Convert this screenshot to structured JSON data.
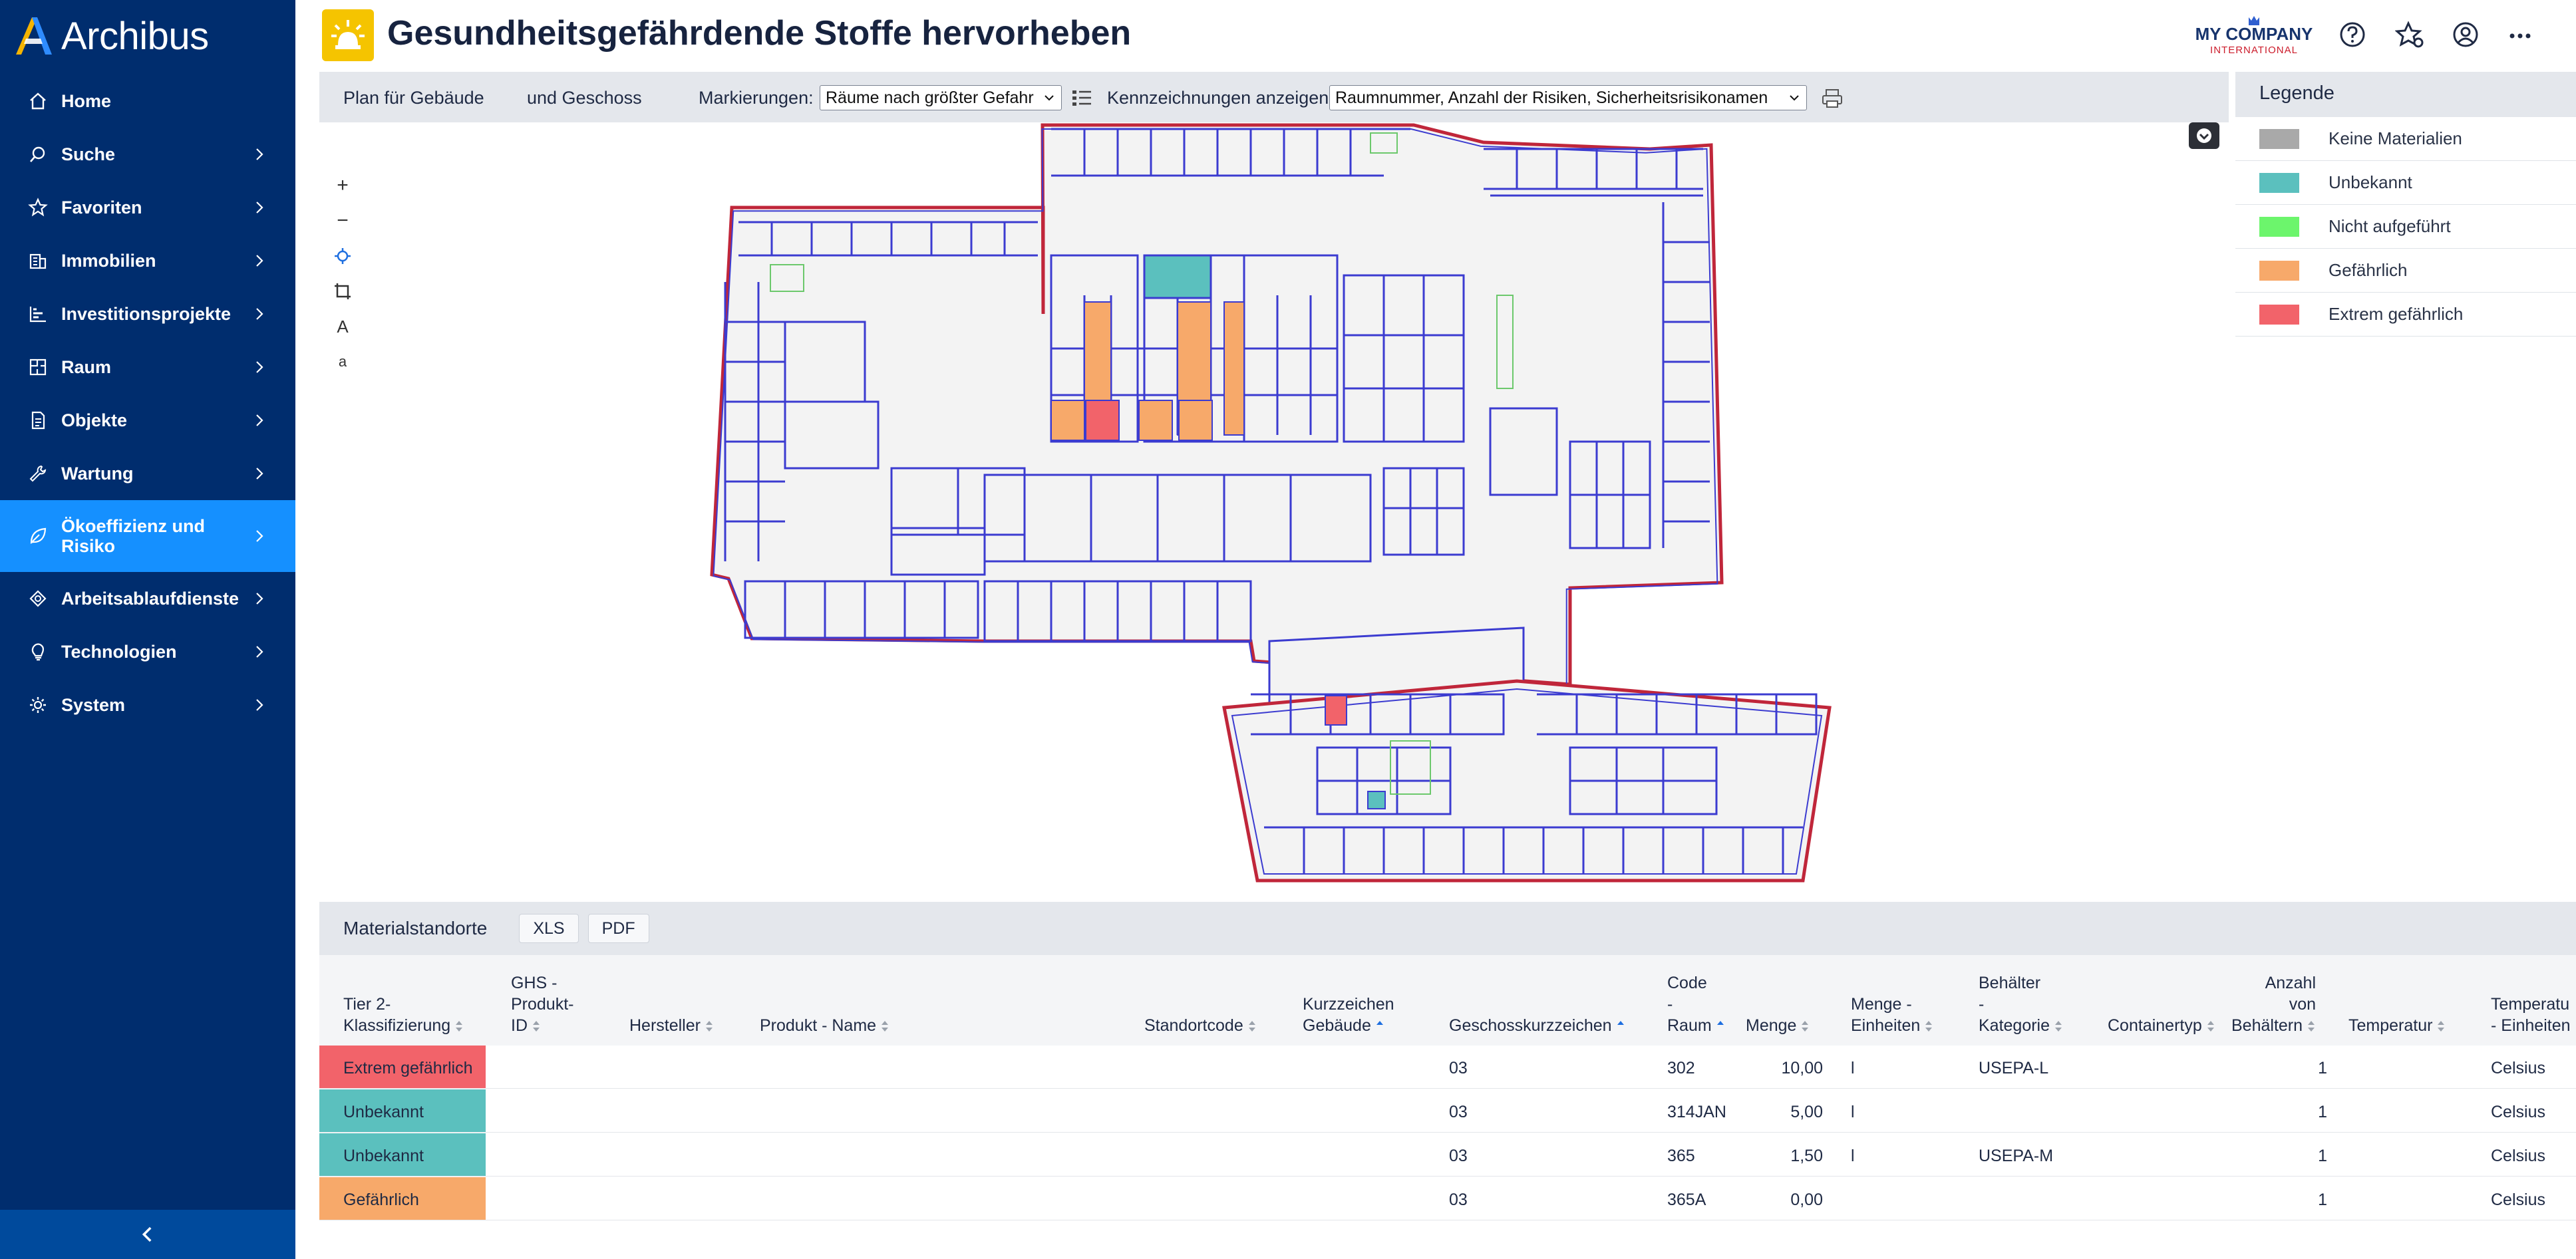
{
  "app": {
    "brand": "Archibus"
  },
  "nav": {
    "items": [
      {
        "label": "Home",
        "icon": "home-icon",
        "has_children": false
      },
      {
        "label": "Suche",
        "icon": "search-icon",
        "has_children": true
      },
      {
        "label": "Favoriten",
        "icon": "star-icon",
        "has_children": true
      },
      {
        "label": "Immobilien",
        "icon": "building-icon",
        "has_children": true
      },
      {
        "label": "Investitionsprojekte",
        "icon": "chart-icon",
        "has_children": true
      },
      {
        "label": "Raum",
        "icon": "floorplan-icon",
        "has_children": true
      },
      {
        "label": "Objekte",
        "icon": "document-icon",
        "has_children": true
      },
      {
        "label": "Wartung",
        "icon": "wrench-icon",
        "has_children": true
      },
      {
        "label": "Ökoeffizienz und Risiko",
        "icon": "leaf-icon",
        "has_children": true,
        "active": true
      },
      {
        "label": "Arbeitsablaufdienste",
        "icon": "workflow-icon",
        "has_children": true
      },
      {
        "label": "Technologien",
        "icon": "lightbulb-icon",
        "has_children": true
      },
      {
        "label": "System",
        "icon": "gear-icon",
        "has_children": true
      }
    ]
  },
  "header": {
    "title": "Gesundheitsgefährdende Stoffe hervorheben",
    "company_line1": "MY COMPANY",
    "company_line2": "INTERNATIONAL"
  },
  "toolbar": {
    "plan_label": "Plan für Gebäude",
    "floor_label": "und Geschoss",
    "markings_label": "Markierungen:",
    "markings_value": "Räume nach größter Gefahr",
    "labels_label": "Kennzeichnungen anzeigen:",
    "labels_value": "Raumnummer, Anzahl der Risiken, Sicherheitsrisikonamen"
  },
  "legend": {
    "title": "Legende",
    "items": [
      {
        "label": "Keine Materialien",
        "color": "#a9a9a9"
      },
      {
        "label": "Unbekannt",
        "color": "#5bc0be"
      },
      {
        "label": "Nicht aufgeführt",
        "color": "#6cf56c"
      },
      {
        "label": "Gefährlich",
        "color": "#f7a96a"
      },
      {
        "label": "Extrem gefährlich",
        "color": "#f2636a"
      }
    ]
  },
  "colors": {
    "sidebar": "#002d6e",
    "active": "#1590ff",
    "wall": "#3b3bd0",
    "outline": "#c0263a"
  },
  "table": {
    "title": "Materialstandorte",
    "export_buttons": [
      "XLS",
      "PDF"
    ],
    "columns": [
      {
        "label": "Tier 2-\nKlassifizierung",
        "sort": "both"
      },
      {
        "label": "GHS -\nProdukt-\nID",
        "sort": "both"
      },
      {
        "label": "Hersteller",
        "sort": "both"
      },
      {
        "label": "Produkt - Name",
        "sort": "both"
      },
      {
        "label": "Standortcode",
        "sort": "both"
      },
      {
        "label": "Kurzzeichen\nGebäude",
        "sort": "asc"
      },
      {
        "label": "Geschosskurzzeichen",
        "sort": "asc"
      },
      {
        "label": "Code\n-\nRaum",
        "sort": "asc"
      },
      {
        "label": "Menge",
        "sort": "both"
      },
      {
        "label": "Menge -\nEinheiten",
        "sort": "both"
      },
      {
        "label": "Behälter\n-\nKategorie",
        "sort": "both"
      },
      {
        "label": "Containertyp",
        "sort": "both"
      },
      {
        "label": "Anzahl\nvon\nBehältern",
        "sort": "both"
      },
      {
        "label": "Temperatur",
        "sort": "both"
      },
      {
        "label": "Temperatu\n- Einheiten",
        "sort": "none"
      }
    ],
    "rows": [
      {
        "classification": "Extrem gefährlich",
        "color": "#f2636a",
        "floor": "03",
        "room": "302",
        "quantity": "10,00",
        "unit": "l",
        "category": "USEPA-L",
        "count": "1",
        "temp_unit": "Celsius"
      },
      {
        "classification": "Unbekannt",
        "color": "#5bc0be",
        "floor": "03",
        "room": "314JAN",
        "quantity": "5,00",
        "unit": "l",
        "category": "",
        "count": "1",
        "temp_unit": "Celsius"
      },
      {
        "classification": "Unbekannt",
        "color": "#5bc0be",
        "floor": "03",
        "room": "365",
        "quantity": "1,50",
        "unit": "l",
        "category": "USEPA-M",
        "count": "1",
        "temp_unit": "Celsius"
      },
      {
        "classification": "Gefährlich",
        "color": "#f7a96a",
        "floor": "03",
        "room": "365A",
        "quantity": "0,00",
        "unit": "",
        "category": "",
        "count": "1",
        "temp_unit": "Celsius"
      }
    ]
  }
}
